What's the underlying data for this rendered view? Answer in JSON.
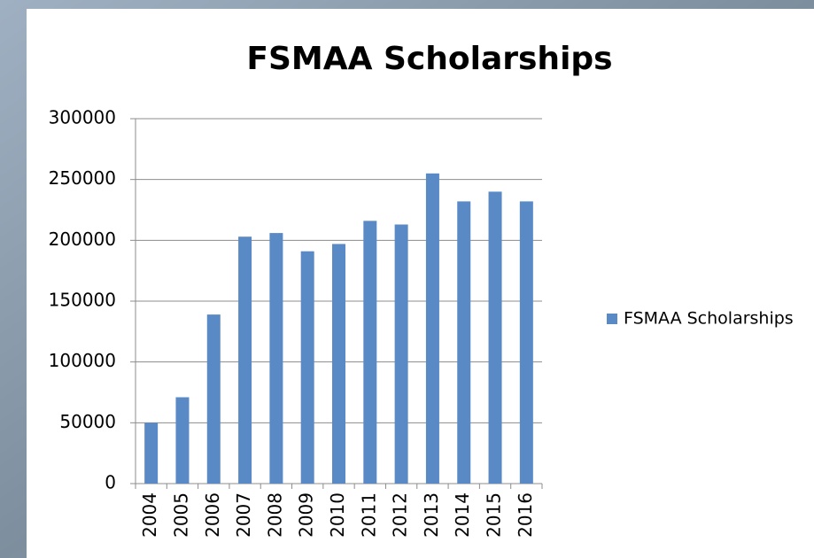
{
  "chart_data": {
    "type": "bar",
    "title": "FSMAA Scholarships",
    "categories": [
      "2004",
      "2005",
      "2006",
      "2007",
      "2008",
      "2009",
      "2010",
      "2011",
      "2012",
      "2013",
      "2014",
      "2015",
      "2016"
    ],
    "series": [
      {
        "name": "FSMAA Scholarships",
        "color": "#5a8ac6",
        "values": [
          50000,
          71000,
          139000,
          203000,
          206000,
          191000,
          197000,
          216000,
          213000,
          255000,
          232000,
          240000,
          232000
        ]
      }
    ],
    "ylim": [
      0,
      300000
    ],
    "yticks": [
      0,
      50000,
      100000,
      150000,
      200000,
      250000,
      300000
    ],
    "grid": true,
    "legend": "right"
  }
}
